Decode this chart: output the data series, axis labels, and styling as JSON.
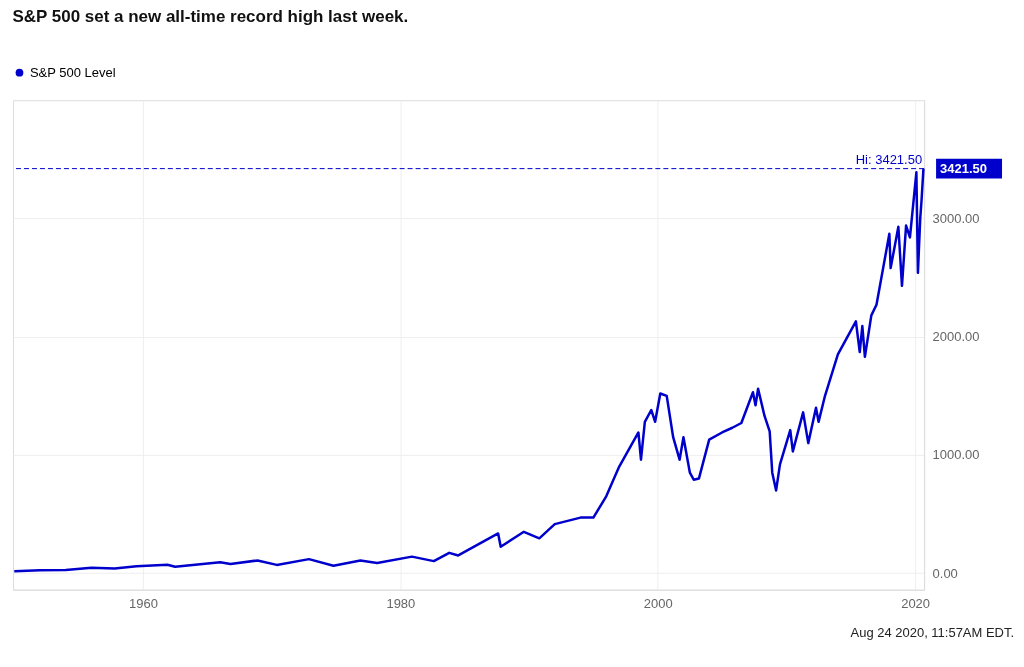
{
  "chart_data": {
    "type": "line",
    "title": "S&P 500 set a new all-time record high last week.",
    "x": [
      1950,
      1952,
      1954,
      1956,
      1957.8,
      1959.5,
      1961.9,
      1962.5,
      1966,
      1966.8,
      1968.9,
      1970.4,
      1972.9,
      1974.8,
      1976.9,
      1978.2,
      1980.9,
      1982.6,
      1983.8,
      1984.5,
      1987.6,
      1987.8,
      1989.6,
      1990.8,
      1992,
      1994,
      1995,
      1996,
      1997,
      1998.5,
      1998.7,
      1999,
      1999.5,
      1999.8,
      2000.2,
      2000.7,
      2001.2,
      2001.7,
      2002,
      2002.5,
      2002.8,
      2003.2,
      2004,
      2005,
      2005.8,
      2006.5,
      2007.4,
      2007.6,
      2007.8,
      2008.3,
      2008.7,
      2008.9,
      2009.2,
      2009.5,
      2010.3,
      2010.5,
      2011.3,
      2011.7,
      2012.3,
      2012.5,
      2013,
      2014,
      2015.4,
      2015.7,
      2015.9,
      2016.1,
      2016.6,
      2017,
      2018,
      2018.1,
      2018.7,
      2018.98,
      2019.3,
      2019.6,
      2020.1,
      2020.22,
      2020.4,
      2020.5,
      2020.65
    ],
    "series": [
      {
        "name": "S&P 500 Level",
        "color": "#0000cc",
        "values": [
          17,
          24,
          26,
          45,
          40,
          58,
          72,
          55,
          92,
          77,
          108,
          70,
          119,
          63,
          107,
          87,
          140,
          102,
          172,
          150,
          336,
          224,
          350,
          295,
          415,
          470,
          470,
          650,
          900,
          1190,
          960,
          1280,
          1380,
          1280,
          1520,
          1500,
          1150,
          960,
          1150,
          850,
          790,
          800,
          1130,
          1190,
          1230,
          1270,
          1530,
          1420,
          1560,
          1330,
          1200,
          850,
          700,
          920,
          1210,
          1030,
          1360,
          1100,
          1400,
          1280,
          1500,
          1850,
          2130,
          1870,
          2090,
          1830,
          2180,
          2270,
          2870,
          2580,
          2930,
          2430,
          2940,
          2840,
          3390,
          2540,
          3000,
          3150,
          3421.5
        ]
      }
    ],
    "xlim": [
      1949.9,
      2020.7
    ],
    "xticks": [
      1960,
      1980,
      2000,
      2020
    ],
    "ylim": [
      -140,
      4000
    ],
    "yticks": [
      {
        "value": 0,
        "label": "0.00"
      },
      {
        "value": 1000,
        "label": "1000.00"
      },
      {
        "value": 2000,
        "label": "2000.00"
      },
      {
        "value": 3000,
        "label": "3000.00"
      }
    ],
    "ref_lines": [
      {
        "axis": "y",
        "value": 3421.5,
        "label": "Hi: 3421.50",
        "color": "#0000cc",
        "line_style": "dashed"
      }
    ],
    "annotations": [
      "3421.50",
      "Aug 24 2020, 11:57AM EDT."
    ],
    "grid": true,
    "legend": "top left",
    "marker": "none",
    "line_style": "solid"
  }
}
